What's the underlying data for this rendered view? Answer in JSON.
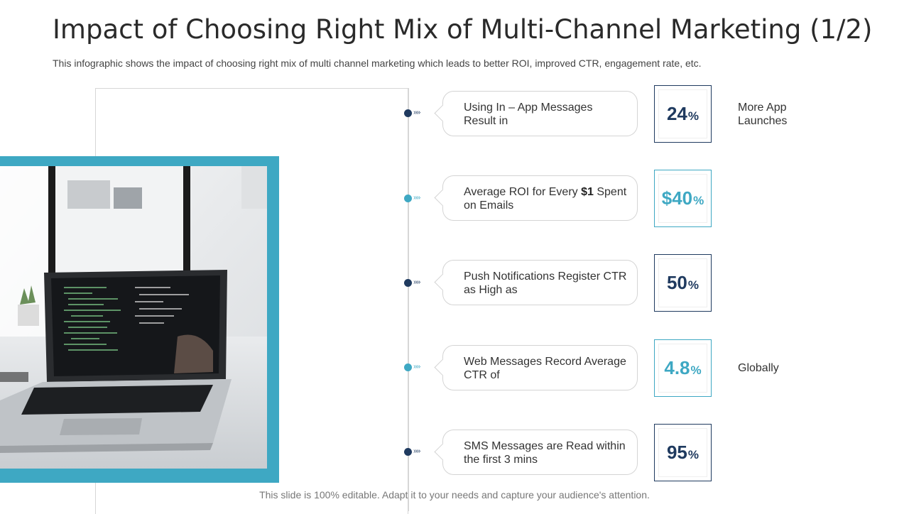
{
  "slide": {
    "title": "Impact of Choosing Right Mix of Multi-Channel Marketing (1/2)",
    "subtitle": "This infographic shows the impact of choosing right mix of multi channel marketing which leads to better ROI, improved CTR, engagement rate, etc.",
    "footer": "This slide is 100% editable. Adapt it to your needs and capture your audience's attention."
  },
  "colors": {
    "dark": "#1f3a5f",
    "teal": "#3ea8c3",
    "photo_frame": "#3ea8c3"
  },
  "items": [
    {
      "text": "Using In – App Messages Result in",
      "value": "24",
      "unit": "%",
      "note": "More App Launches",
      "color": "dark"
    },
    {
      "text_before": "Average ROI for Every ",
      "text_bold": "$1",
      "text_after": " Spent on Emails",
      "value": "$40",
      "unit": "%",
      "note": "",
      "color": "teal"
    },
    {
      "text": "Push Notifications Register CTR as High as",
      "value": "50",
      "unit": "%",
      "note": "",
      "color": "dark"
    },
    {
      "text": "Web Messages Record Average CTR of",
      "value": "4.8",
      "unit": "%",
      "note": "Globally",
      "color": "teal"
    },
    {
      "text": "SMS Messages are Read within the first 3 mins",
      "value": "95",
      "unit": "%",
      "note": "",
      "color": "dark"
    }
  ],
  "icons": {
    "connector": "chevron-arrows-icon",
    "photo": "laptop-desk-photo"
  }
}
